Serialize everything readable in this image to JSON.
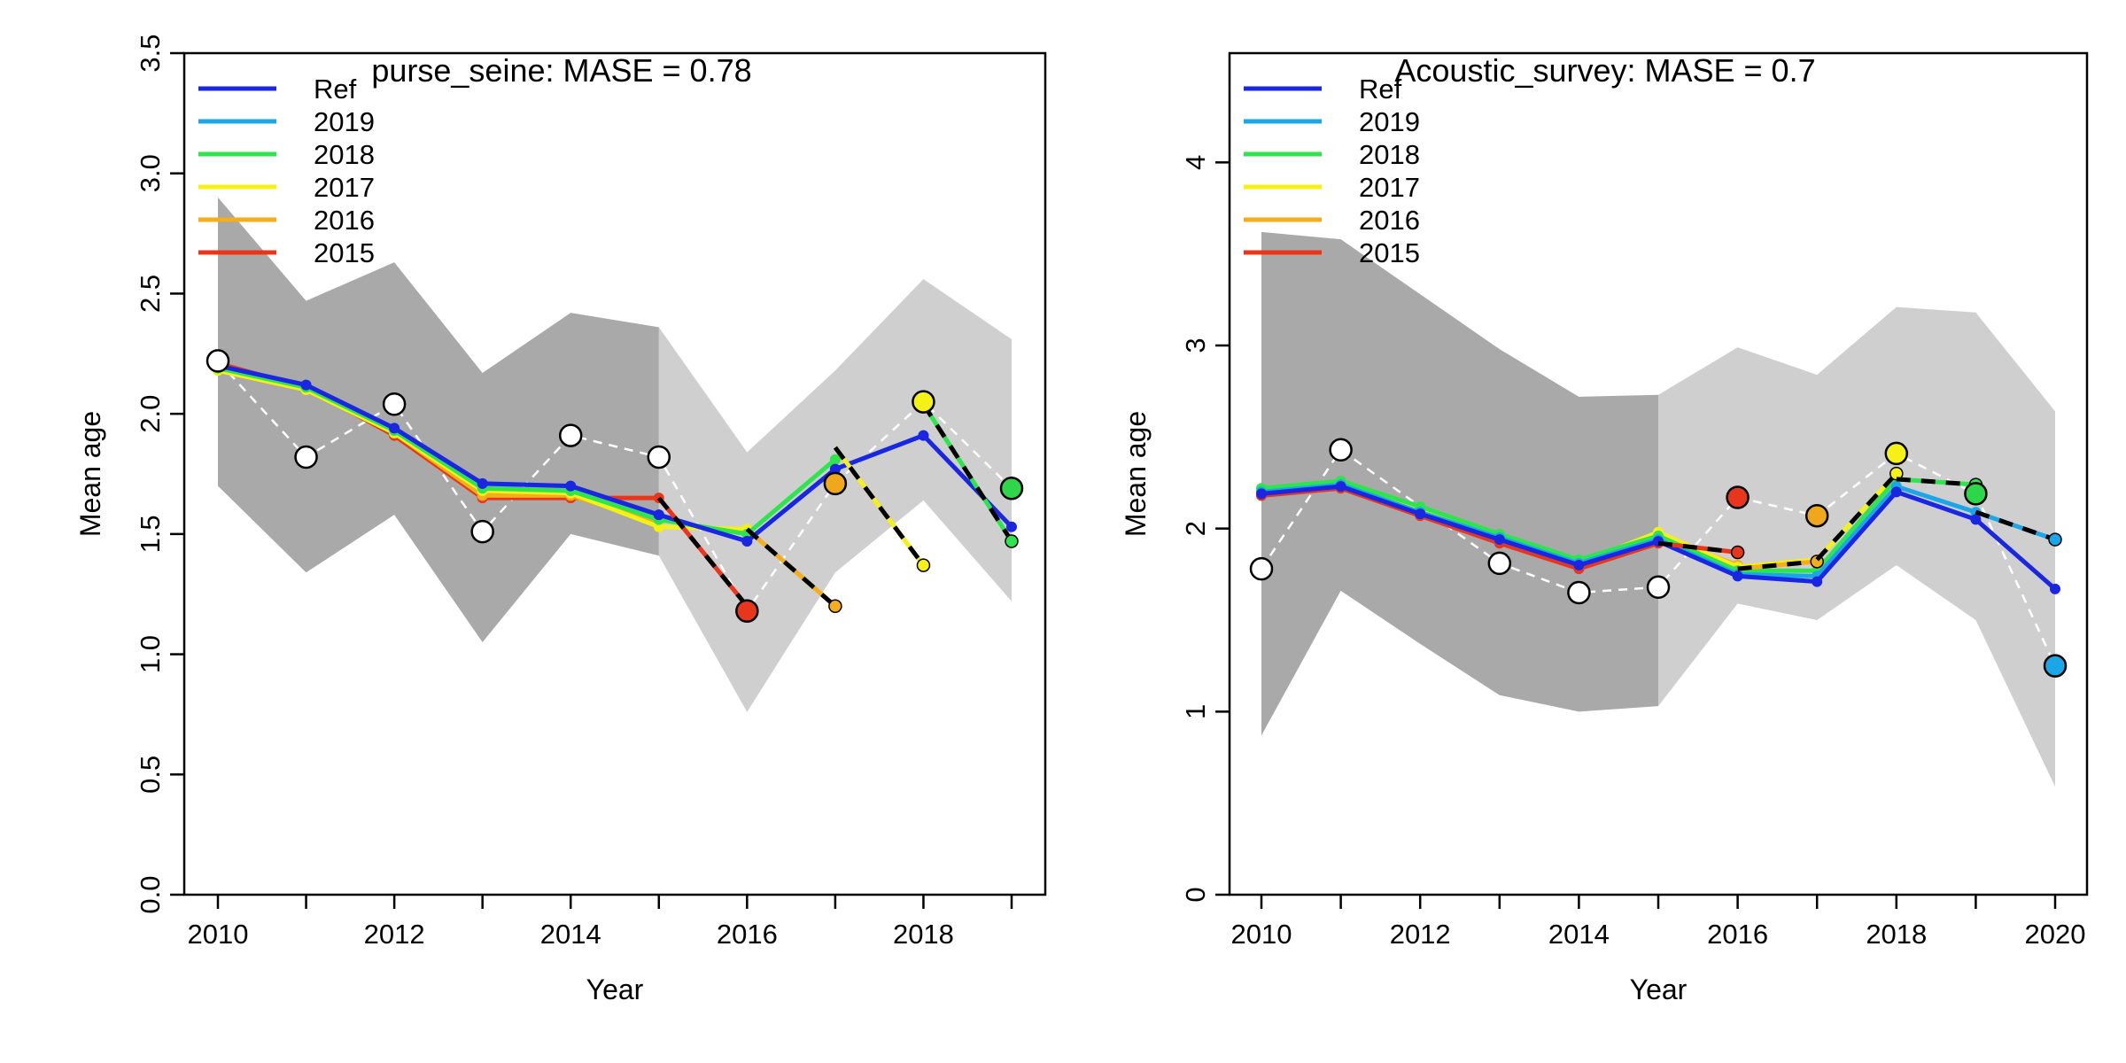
{
  "chart_data": [
    {
      "type": "line",
      "title": "purse_seine: MASE = 0.78",
      "xlabel": "Year",
      "ylabel": "Mean age",
      "xlim": [
        2010,
        2019
      ],
      "ylim": [
        0,
        3.5
      ],
      "xticks": [
        2010,
        2011,
        2012,
        2013,
        2014,
        2015,
        2016,
        2017,
        2018,
        2019
      ],
      "xtick_labels": [
        "2010",
        "",
        "2012",
        "",
        "2014",
        "",
        "2016",
        "",
        "2018",
        ""
      ],
      "yticks": [
        0.0,
        0.5,
        1.0,
        1.5,
        2.0,
        2.5,
        3.0,
        3.5
      ],
      "ytick_labels": [
        "0.0",
        "0.5",
        "1.0",
        "1.5",
        "2.0",
        "2.5",
        "3.0",
        "3.5"
      ],
      "dark_band": {
        "x": [
          2010,
          2011,
          2012,
          2013,
          2014,
          2015
        ],
        "upper": [
          2.9,
          2.47,
          2.63,
          2.17,
          2.42,
          2.36
        ],
        "lower": [
          1.7,
          1.34,
          1.58,
          1.05,
          1.5,
          1.41
        ]
      },
      "light_band": {
        "x": [
          2015,
          2016,
          2017,
          2018,
          2019
        ],
        "upper": [
          2.36,
          1.84,
          2.18,
          2.56,
          2.31
        ],
        "lower": [
          1.41,
          0.76,
          1.34,
          1.64,
          1.22
        ]
      },
      "observed": {
        "x": [
          2010,
          2011,
          2012,
          2013,
          2014,
          2015,
          2016,
          2017,
          2018,
          2019
        ],
        "y": [
          2.22,
          1.82,
          2.04,
          1.51,
          1.91,
          1.82,
          1.18,
          1.71,
          2.05,
          1.69
        ],
        "colors": [
          "#ffffff",
          "#ffffff",
          "#ffffff",
          "#ffffff",
          "#ffffff",
          "#ffffff",
          "#e8361c",
          "#f0a71c",
          "#f5f016",
          "#2ed64a"
        ]
      },
      "series": [
        {
          "name": "Ref",
          "color": "#1a26e0",
          "x": [
            2010,
            2011,
            2012,
            2013,
            2014,
            2015,
            2016,
            2017,
            2018,
            2019
          ],
          "y": [
            2.2,
            2.12,
            1.94,
            1.71,
            1.7,
            1.58,
            1.47,
            1.77,
            1.91,
            1.53
          ]
        },
        {
          "name": "2019",
          "color": "#1ba6e8",
          "x": [
            2010,
            2011,
            2012,
            2013,
            2014,
            2015,
            2016,
            2017,
            2018
          ],
          "y": [
            2.2,
            2.12,
            1.94,
            1.71,
            1.7,
            1.58,
            1.47,
            1.77,
            1.91
          ]
        },
        {
          "name": "2018",
          "color": "#2ee54d",
          "x": [
            2010,
            2011,
            2012,
            2013,
            2014,
            2015,
            2016,
            2017
          ],
          "y": [
            2.19,
            2.11,
            1.93,
            1.69,
            1.68,
            1.56,
            1.5,
            1.81
          ]
        },
        {
          "name": "2017",
          "color": "#f5f016",
          "x": [
            2010,
            2011,
            2012,
            2013,
            2014,
            2015,
            2016
          ],
          "y": [
            2.18,
            2.1,
            1.92,
            1.68,
            1.67,
            1.53,
            1.52
          ]
        },
        {
          "name": "2016",
          "color": "#f4ad1b",
          "x": [
            2010,
            2011,
            2012,
            2013,
            2014,
            2015
          ],
          "y": [
            2.19,
            2.11,
            1.92,
            1.66,
            1.66,
            1.55
          ]
        },
        {
          "name": "2015",
          "color": "#e8361c",
          "x": [
            2010,
            2011,
            2012,
            2013,
            2014,
            2015
          ],
          "y": [
            2.21,
            2.11,
            1.91,
            1.65,
            1.65,
            1.65
          ]
        }
      ],
      "forecasts": [
        {
          "x": [
            2015,
            2016
          ],
          "y": [
            1.65,
            1.2
          ],
          "color": "#e8361c"
        },
        {
          "x": [
            2016,
            2017
          ],
          "y": [
            1.52,
            1.2
          ],
          "color": "#f4ad1b"
        },
        {
          "x": [
            2017,
            2018
          ],
          "y": [
            1.86,
            1.37
          ],
          "color": "#f5f016"
        },
        {
          "x": [
            2018,
            2019
          ],
          "y": [
            2.04,
            1.47
          ],
          "color": "#2ee54d"
        }
      ],
      "legend_position": "top-left"
    },
    {
      "type": "line",
      "title": "Acoustic_survey: MASE = 0.7",
      "xlabel": "Year",
      "ylabel": "Mean age",
      "xlim": [
        2010,
        2020
      ],
      "ylim": [
        0,
        4.5
      ],
      "xticks": [
        2010,
        2011,
        2012,
        2013,
        2014,
        2015,
        2016,
        2017,
        2018,
        2019,
        2020
      ],
      "xtick_labels": [
        "2010",
        "",
        "2012",
        "",
        "2014",
        "",
        "2016",
        "",
        "2018",
        "",
        "2020"
      ],
      "yticks": [
        0,
        1,
        2,
        3,
        4
      ],
      "ytick_labels": [
        "0",
        "1",
        "2",
        "3",
        "4"
      ],
      "dark_band": {
        "x": [
          2010,
          2011,
          2012,
          2013,
          2014,
          2015
        ],
        "upper": [
          3.62,
          3.58,
          3.28,
          2.98,
          2.72,
          2.73
        ],
        "lower": [
          0.87,
          1.66,
          1.37,
          1.09,
          1.0,
          1.03
        ]
      },
      "light_band": {
        "x": [
          2015,
          2016,
          2017,
          2018,
          2019,
          2020
        ],
        "upper": [
          2.73,
          2.99,
          2.84,
          3.21,
          3.18,
          2.64
        ],
        "lower": [
          1.03,
          1.59,
          1.5,
          1.8,
          1.5,
          0.59
        ]
      },
      "observed": {
        "x": [
          2010,
          2011,
          2013,
          2014,
          2015,
          2016,
          2017,
          2018,
          2019,
          2020
        ],
        "y": [
          1.78,
          2.43,
          1.81,
          1.65,
          1.68,
          2.17,
          2.07,
          2.41,
          2.19,
          1.25
        ],
        "colors": [
          "#ffffff",
          "#ffffff",
          "#ffffff",
          "#ffffff",
          "#ffffff",
          "#e8361c",
          "#f0a71c",
          "#f5f016",
          "#2ed64a",
          "#1ba6e8"
        ]
      },
      "series": [
        {
          "name": "Ref",
          "color": "#1a26e0",
          "x": [
            2010,
            2011,
            2012,
            2013,
            2014,
            2015,
            2016,
            2017,
            2018,
            2019,
            2020
          ],
          "y": [
            2.19,
            2.23,
            2.08,
            1.94,
            1.8,
            1.93,
            1.74,
            1.71,
            2.2,
            2.05,
            1.67
          ]
        },
        {
          "name": "2019",
          "color": "#1ba6e8",
          "x": [
            2010,
            2011,
            2012,
            2013,
            2014,
            2015,
            2016,
            2017,
            2018,
            2019
          ],
          "y": [
            2.2,
            2.24,
            2.09,
            1.95,
            1.81,
            1.94,
            1.75,
            1.74,
            2.23,
            2.09
          ]
        },
        {
          "name": "2018",
          "color": "#2ee54d",
          "x": [
            2010,
            2011,
            2012,
            2013,
            2014,
            2015,
            2016,
            2017,
            2018
          ],
          "y": [
            2.22,
            2.26,
            2.12,
            1.97,
            1.83,
            1.96,
            1.77,
            1.77,
            2.27
          ]
        },
        {
          "name": "2017",
          "color": "#f5f016",
          "x": [
            2010,
            2011,
            2012,
            2013,
            2014,
            2015,
            2016,
            2017
          ],
          "y": [
            2.21,
            2.25,
            2.1,
            1.95,
            1.81,
            1.98,
            1.79,
            1.83
          ]
        },
        {
          "name": "2016",
          "color": "#f4ad1b",
          "x": [
            2010,
            2011,
            2012,
            2013,
            2014,
            2015,
            2016
          ],
          "y": [
            2.2,
            2.24,
            2.09,
            1.94,
            1.8,
            1.96,
            1.8
          ]
        },
        {
          "name": "2015",
          "color": "#e8361c",
          "x": [
            2010,
            2011,
            2012,
            2013,
            2014,
            2015
          ],
          "y": [
            2.18,
            2.22,
            2.07,
            1.92,
            1.78,
            1.92
          ]
        }
      ],
      "forecasts": [
        {
          "x": [
            2015,
            2016
          ],
          "y": [
            1.92,
            1.87
          ],
          "color": "#e8361c"
        },
        {
          "x": [
            2016,
            2017
          ],
          "y": [
            1.78,
            1.82
          ],
          "color": "#f4ad1b"
        },
        {
          "x": [
            2017,
            2018
          ],
          "y": [
            1.83,
            2.3
          ],
          "color": "#f5f016"
        },
        {
          "x": [
            2018,
            2019
          ],
          "y": [
            2.27,
            2.24
          ],
          "color": "#2ee54d"
        },
        {
          "x": [
            2019,
            2020
          ],
          "y": [
            2.09,
            1.94
          ],
          "color": "#1ba6e8"
        }
      ],
      "legend_position": "top-left"
    }
  ]
}
